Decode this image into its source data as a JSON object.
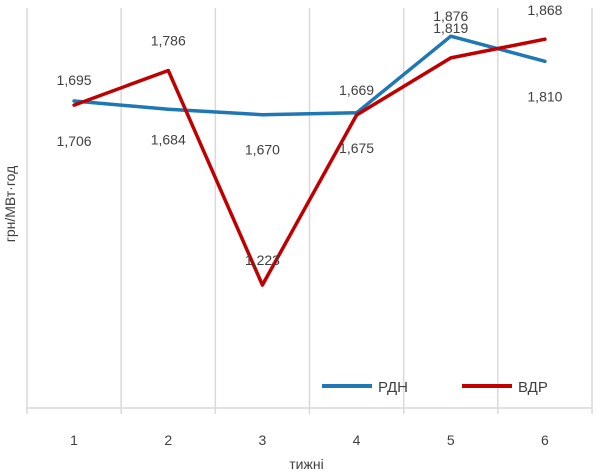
{
  "chart_data": {
    "type": "line",
    "title": "",
    "xlabel": "тижні",
    "ylabel": "грн/МВт·год",
    "categories": [
      "1",
      "2",
      "3",
      "4",
      "5",
      "6"
    ],
    "ylim": [
      0.9,
      1.95
    ],
    "grid": "vertical",
    "legend_position": "bottom-right",
    "series": [
      {
        "name": "РДН",
        "color": "#1f77b4",
        "values": [
          1.706,
          1.684,
          1.67,
          1.675,
          1.876,
          1.81
        ],
        "labels": [
          "1,706",
          "1,684",
          "1,670",
          "1,675",
          "1,876",
          "1,810"
        ]
      },
      {
        "name": "ВДР",
        "color": "#c00000",
        "values": [
          1.695,
          1.786,
          1.223,
          1.669,
          1.819,
          1.868
        ],
        "labels": [
          "1,695",
          "1,786",
          "1,223",
          "1,669",
          "1,819",
          "1,868"
        ]
      }
    ]
  }
}
